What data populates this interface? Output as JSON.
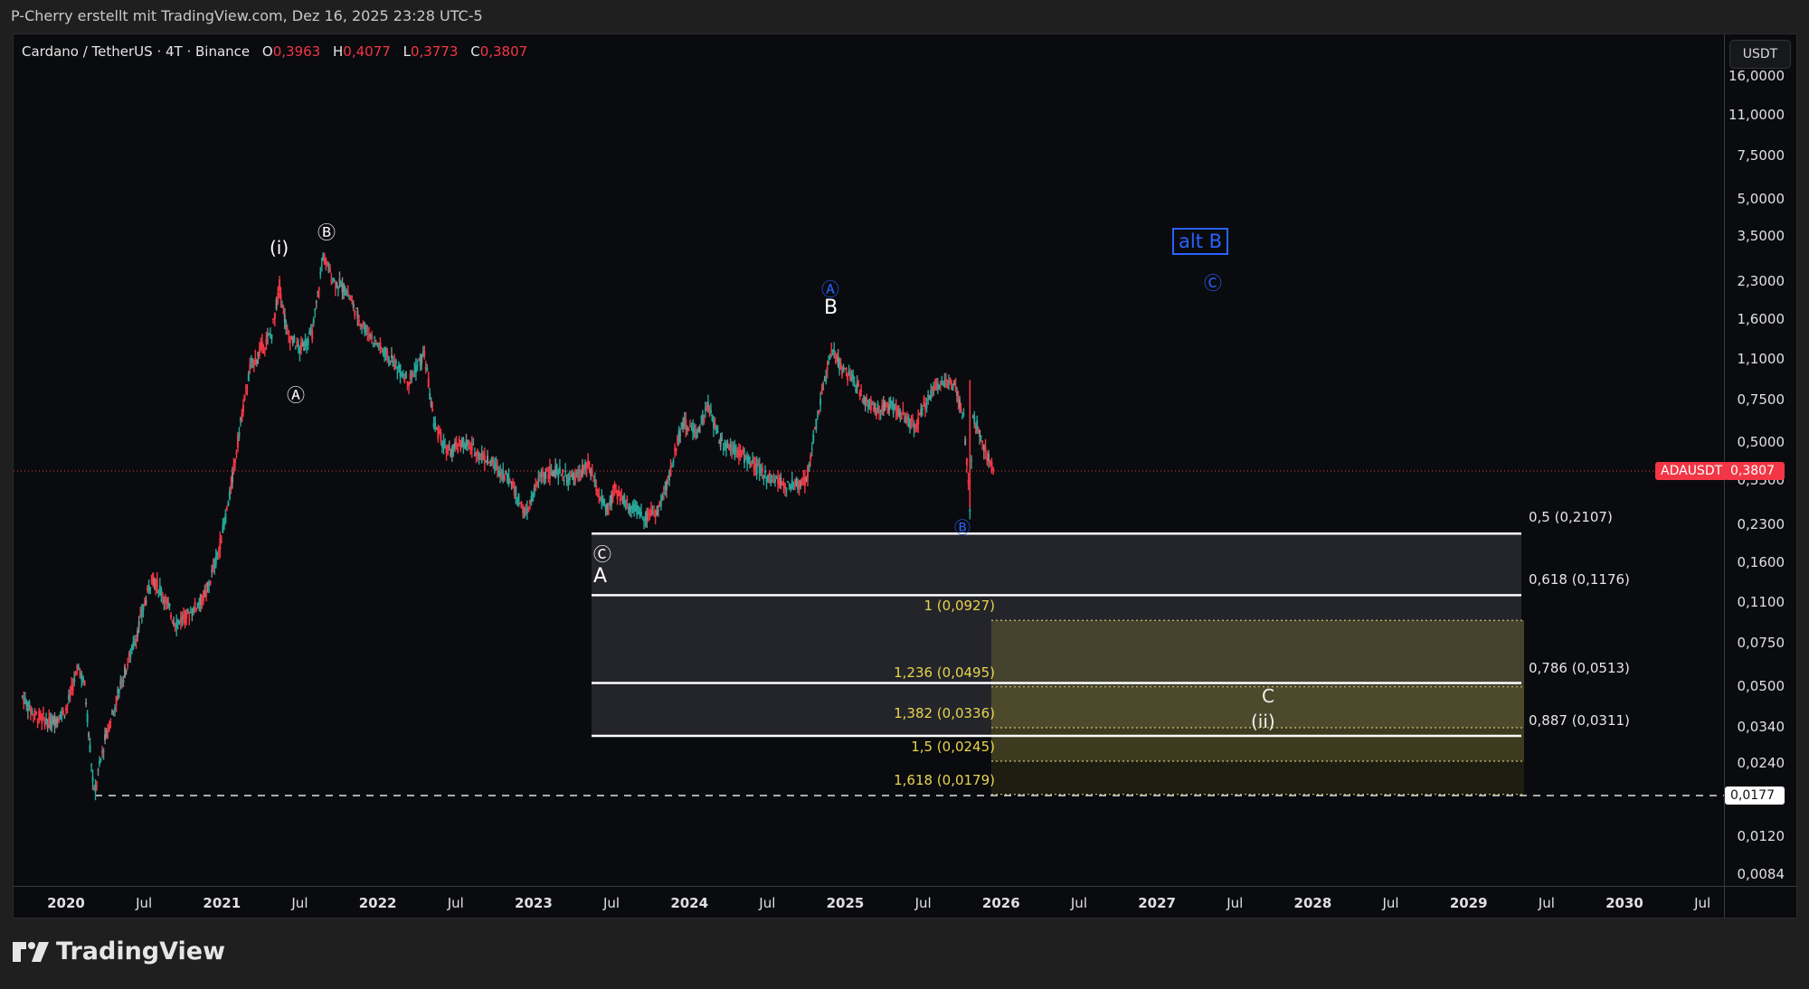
{
  "caption": "P-Cherry erstellt mit TradingView.com, Dez 16, 2025 23:28 UTC-5",
  "legend": {
    "symbol": "Cardano / TetherUS · 4T · Binance",
    "o_label": "O",
    "o_value": "0,3963",
    "h_label": "H",
    "h_value": "0,4077",
    "l_label": "L",
    "l_value": "0,3773",
    "c_label": "C",
    "c_value": "0,3807"
  },
  "price_axis": {
    "currency": "USDT",
    "ticks": [
      "16,0000",
      "11,0000",
      "7,5000",
      "5,0000",
      "3,5000",
      "2,3000",
      "1,6000",
      "1,1000",
      "0,7500",
      "0,5000",
      "0,3500",
      "0,2300",
      "0,1600",
      "0,1100",
      "0,0750",
      "0,0500",
      "0,0340",
      "0,0240",
      "0,0120",
      "0,0084"
    ],
    "last_price_symbol": "ADAUSDT",
    "last_price": "0,3807",
    "low_marker": "0,0177"
  },
  "time_axis": {
    "ticks": [
      {
        "label": "2020",
        "year": true
      },
      {
        "label": "Jul",
        "year": false
      },
      {
        "label": "2021",
        "year": true
      },
      {
        "label": "Jul",
        "year": false
      },
      {
        "label": "2022",
        "year": true
      },
      {
        "label": "Jul",
        "year": false
      },
      {
        "label": "2023",
        "year": true
      },
      {
        "label": "Jul",
        "year": false
      },
      {
        "label": "2024",
        "year": true
      },
      {
        "label": "Jul",
        "year": false
      },
      {
        "label": "2025",
        "year": true
      },
      {
        "label": "Jul",
        "year": false
      },
      {
        "label": "2026",
        "year": true
      },
      {
        "label": "Jul",
        "year": false
      },
      {
        "label": "2027",
        "year": true
      },
      {
        "label": "Jul",
        "year": false
      },
      {
        "label": "2028",
        "year": true
      },
      {
        "label": "Jul",
        "year": false
      },
      {
        "label": "2029",
        "year": true
      },
      {
        "label": "Jul",
        "year": false
      },
      {
        "label": "2030",
        "year": true
      },
      {
        "label": "Jul",
        "year": false
      }
    ]
  },
  "wave_labels": {
    "i": "(i)",
    "circ_b_top": "Ⓑ",
    "circ_a_2021": "Ⓐ",
    "circ_a_blue": "Ⓐ",
    "B": "B",
    "alt_b": "alt B",
    "circ_c_blue": "Ⓒ",
    "circ_b_blue": "Ⓑ",
    "circ_c_white": "Ⓒ",
    "A": "A",
    "C": "C",
    "ii": "(ii)"
  },
  "fib_retracement": [
    {
      "label": "0,5 (0,2107)",
      "price": 0.2107
    },
    {
      "label": "0,618 (0,1176)",
      "price": 0.1176
    },
    {
      "label": "0,786 (0,0513)",
      "price": 0.0513
    },
    {
      "label": "0,887 (0,0311)",
      "price": 0.0311
    }
  ],
  "fib_extension": [
    {
      "label": "1 (0,0927)",
      "price": 0.0927
    },
    {
      "label": "1,236 (0,0495)",
      "price": 0.0495
    },
    {
      "label": "1,382 (0,0336)",
      "price": 0.0336
    },
    {
      "label": "1,5 (0,0245)",
      "price": 0.0245
    },
    {
      "label": "1,618 (0,0179)",
      "price": 0.0179
    }
  ],
  "colors": {
    "up": "#26a69a",
    "down": "#f23645",
    "neutral": "#8a8a8a",
    "fib_ext_text": "#e8d44d",
    "elliott_blue": "#2962ff",
    "background": "#0a0b0e"
  },
  "branding": {
    "logo_text": "TradingView"
  },
  "chart_data": {
    "type": "line",
    "title": "Cardano / TetherUS · 4T · Binance",
    "xlabel": "",
    "ylabel": "USDT (log)",
    "x": [
      "2020-01",
      "2020-03",
      "2020-07",
      "2020-11",
      "2021-02",
      "2021-05",
      "2021-07",
      "2021-09",
      "2022-01",
      "2022-06",
      "2022-12",
      "2023-04",
      "2023-06",
      "2023-10",
      "2024-03",
      "2024-08",
      "2024-12",
      "2025-03",
      "2025-08",
      "2025-10",
      "2025-12"
    ],
    "series": [
      {
        "name": "ADAUSDT (approx close)",
        "values": [
          0.045,
          0.018,
          0.12,
          0.1,
          0.9,
          1.4,
          1.2,
          2.9,
          1.3,
          0.5,
          0.25,
          0.4,
          0.26,
          0.25,
          0.7,
          0.33,
          1.2,
          0.7,
          0.95,
          0.6,
          0.3807
        ]
      }
    ],
    "ylim": [
      0.008,
      16.0
    ]
  }
}
